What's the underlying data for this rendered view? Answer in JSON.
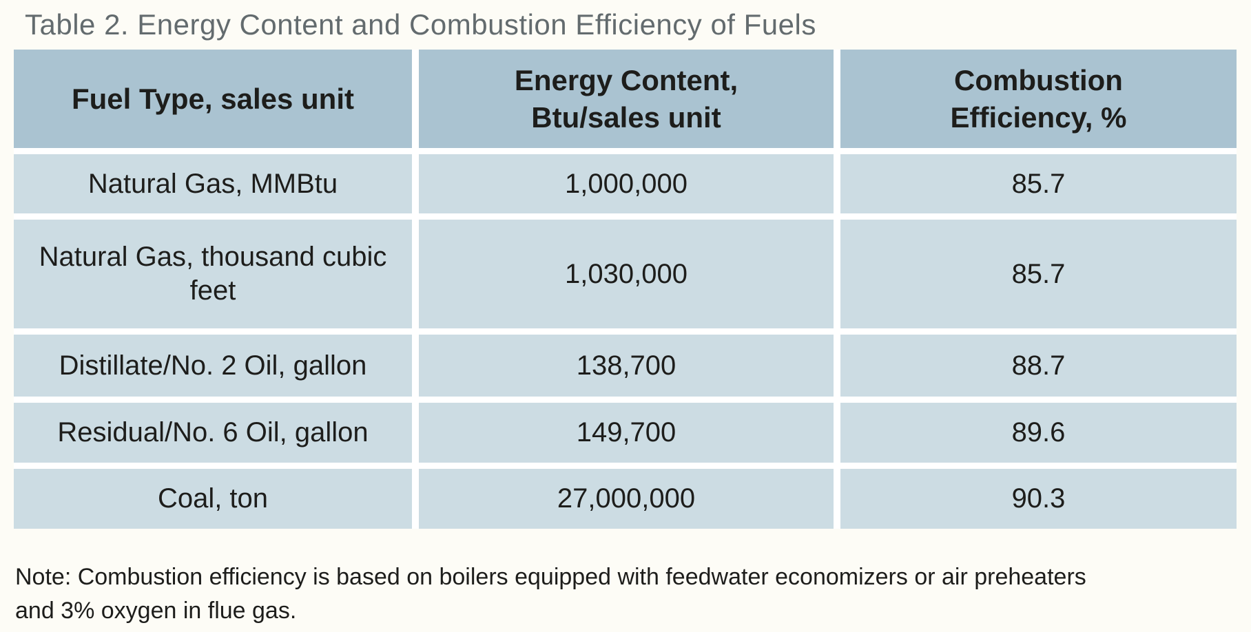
{
  "title": "Table 2. Energy Content and Combustion Efficiency of Fuels",
  "table": {
    "columns": [
      {
        "label": "Fuel Type, sales unit"
      },
      {
        "label": "Energy Content,\nBtu/sales unit"
      },
      {
        "label": "Combustion\nEfficiency, %"
      }
    ],
    "rows": [
      {
        "fuel": "Natural Gas, MMBtu",
        "energy_content": "1,000,000",
        "combustion_efficiency": "85.7"
      },
      {
        "fuel": "Natural Gas, thousand cubic feet",
        "energy_content": "1,030,000",
        "combustion_efficiency": "85.7"
      },
      {
        "fuel": "Distillate/No. 2 Oil, gallon",
        "energy_content": "138,700",
        "combustion_efficiency": "88.7"
      },
      {
        "fuel": "Residual/No. 6 Oil, gallon",
        "energy_content": "149,700",
        "combustion_efficiency": "89.6"
      },
      {
        "fuel": "Coal, ton",
        "energy_content": "27,000,000",
        "combustion_efficiency": "90.3"
      }
    ]
  },
  "note": "Note: Combustion efficiency is based on boilers equipped with feedwater economizers or air preheaters and 3% oxygen in flue gas.",
  "colors": {
    "header_bg": "#aac3d1",
    "row_bg": "#ccdce3",
    "cell_gap": "#ffffff",
    "page_bg": "#fdfcf6",
    "title_text": "#636b6e",
    "body_text": "#1d1d1b"
  }
}
